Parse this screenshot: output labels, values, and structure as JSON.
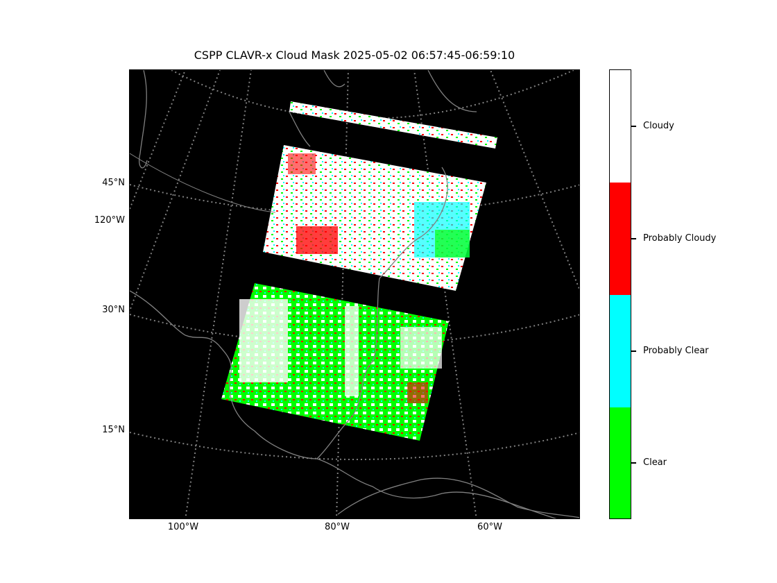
{
  "title": "CSPP CLAVR-x Cloud Mask 2025-05-02 06:57:45-06:59:10",
  "map": {
    "background_color": "#000000",
    "graticule_color": "#808080",
    "coastline_color": "#808080",
    "lat_labels": [
      "45°N",
      "120°W",
      "30°N",
      "15°N"
    ],
    "lon_labels": [
      "100°W",
      "80°W",
      "60°W"
    ]
  },
  "colorbar": {
    "categories": [
      {
        "label": "Cloudy",
        "color": "#ffffff"
      },
      {
        "label": "Probably Cloudy",
        "color": "#ff0000"
      },
      {
        "label": "Probably Clear",
        "color": "#00ffff"
      },
      {
        "label": "Clear",
        "color": "#00ff00"
      }
    ]
  }
}
